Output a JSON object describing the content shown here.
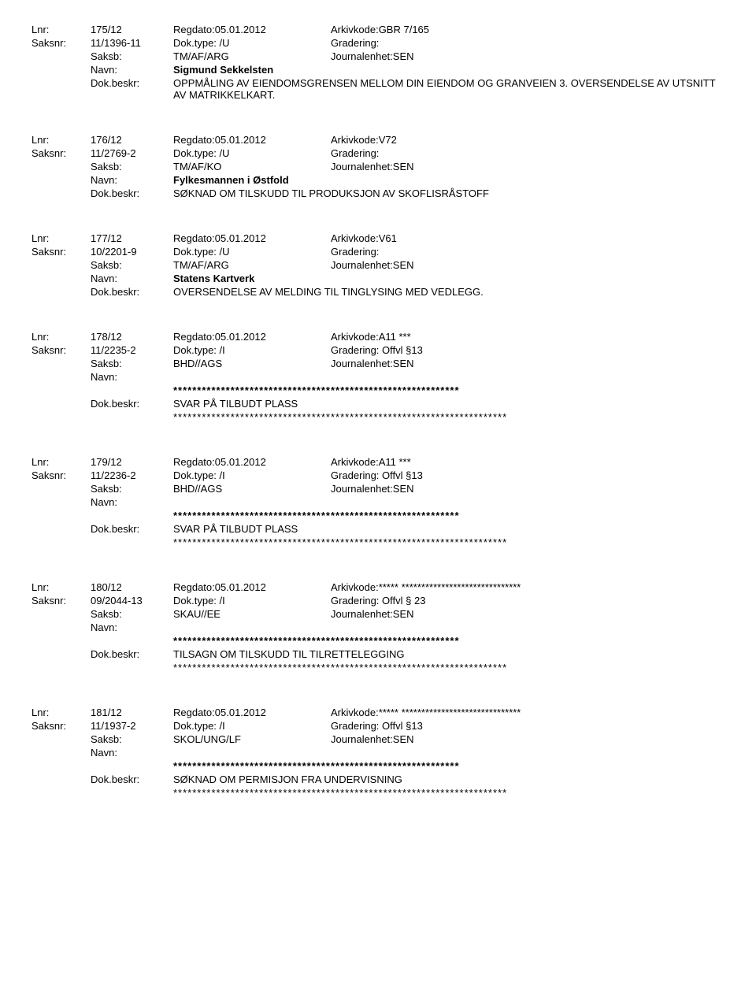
{
  "labels": {
    "lnr": "Lnr:",
    "saksnr": "Saksnr:",
    "saksb": "Saksb:",
    "navn": "Navn:",
    "dokbeskr": "Dok.beskr:",
    "regdato": "Regdato:",
    "doktype": "Dok.type:",
    "arkivkode": "Arkivkode:",
    "gradering": "Gradering:",
    "journalenhet": "Journalenhet:"
  },
  "entries": [
    {
      "lnr": "175/12",
      "regdato": "05.01.2012",
      "arkivkode": "GBR 7/165",
      "saksnr": "11/1396-11",
      "doktype": "/U",
      "gradering": "",
      "saksb": "TM/AF/ARG",
      "journalenhet": "SEN",
      "navn": "Sigmund Sekkelsten",
      "dokbeskr": "OPPMÅLING AV EIENDOMSGRENSEN MELLOM DIN EIENDOM OG GRANVEIEN 3. OVERSENDELSE AV UTSNITT AV MATRIKKELKART.",
      "redacted": false
    },
    {
      "lnr": "176/12",
      "regdato": "05.01.2012",
      "arkivkode": "V72",
      "saksnr": "11/2769-2",
      "doktype": "/U",
      "gradering": "",
      "saksb": "TM/AF/KO",
      "journalenhet": "SEN",
      "navn": "Fylkesmannen i Østfold",
      "dokbeskr": "SØKNAD OM TILSKUDD TIL PRODUKSJON AV SKOFLISRÅSTOFF",
      "redacted": false
    },
    {
      "lnr": "177/12",
      "regdato": "05.01.2012",
      "arkivkode": "V61",
      "saksnr": "10/2201-9",
      "doktype": "/U",
      "gradering": "",
      "saksb": "TM/AF/ARG",
      "journalenhet": "SEN",
      "navn": "Statens Kartverk",
      "dokbeskr": "OVERSENDELSE AV MELDING TIL TINGLYSING MED VEDLEGG.",
      "redacted": false
    },
    {
      "lnr": "178/12",
      "regdato": "05.01.2012",
      "arkivkode": "A11 ***",
      "saksnr": "11/2235-2",
      "doktype": "/I",
      "gradering": "Offvl §13",
      "saksb": "BHD//AGS",
      "journalenhet": "SEN",
      "navn": "",
      "dokbeskr": "SVAR PÅ TILBUDT PLASS",
      "redacted": true
    },
    {
      "lnr": "179/12",
      "regdato": "05.01.2012",
      "arkivkode": "A11 ***",
      "saksnr": "11/2236-2",
      "doktype": "/I",
      "gradering": "Offvl §13",
      "saksb": "BHD//AGS",
      "journalenhet": "SEN",
      "navn": "",
      "dokbeskr": "SVAR PÅ TILBUDT PLASS",
      "redacted": true
    },
    {
      "lnr": "180/12",
      "regdato": "05.01.2012",
      "arkivkode": "***** ******************************",
      "saksnr": "09/2044-13",
      "doktype": "/I",
      "gradering": "Offvl § 23",
      "saksb": "SKAU//EE",
      "journalenhet": "SEN",
      "navn": "",
      "dokbeskr": "TILSAGN OM TILSKUDD TIL TILRETTELEGGING",
      "redacted": true
    },
    {
      "lnr": "181/12",
      "regdato": "05.01.2012",
      "arkivkode": "***** ******************************",
      "saksnr": "11/1937-2",
      "doktype": "/I",
      "gradering": "Offvl §13",
      "saksb": "SKOL/UNG/LF",
      "journalenhet": "SEN",
      "navn": "",
      "dokbeskr": "SØKNAD OM PERMISJON FRA UNDERVISNING",
      "redacted": true
    }
  ],
  "stars": {
    "navnStars": "************************************************************",
    "dokStars": "**********************************************************************"
  }
}
